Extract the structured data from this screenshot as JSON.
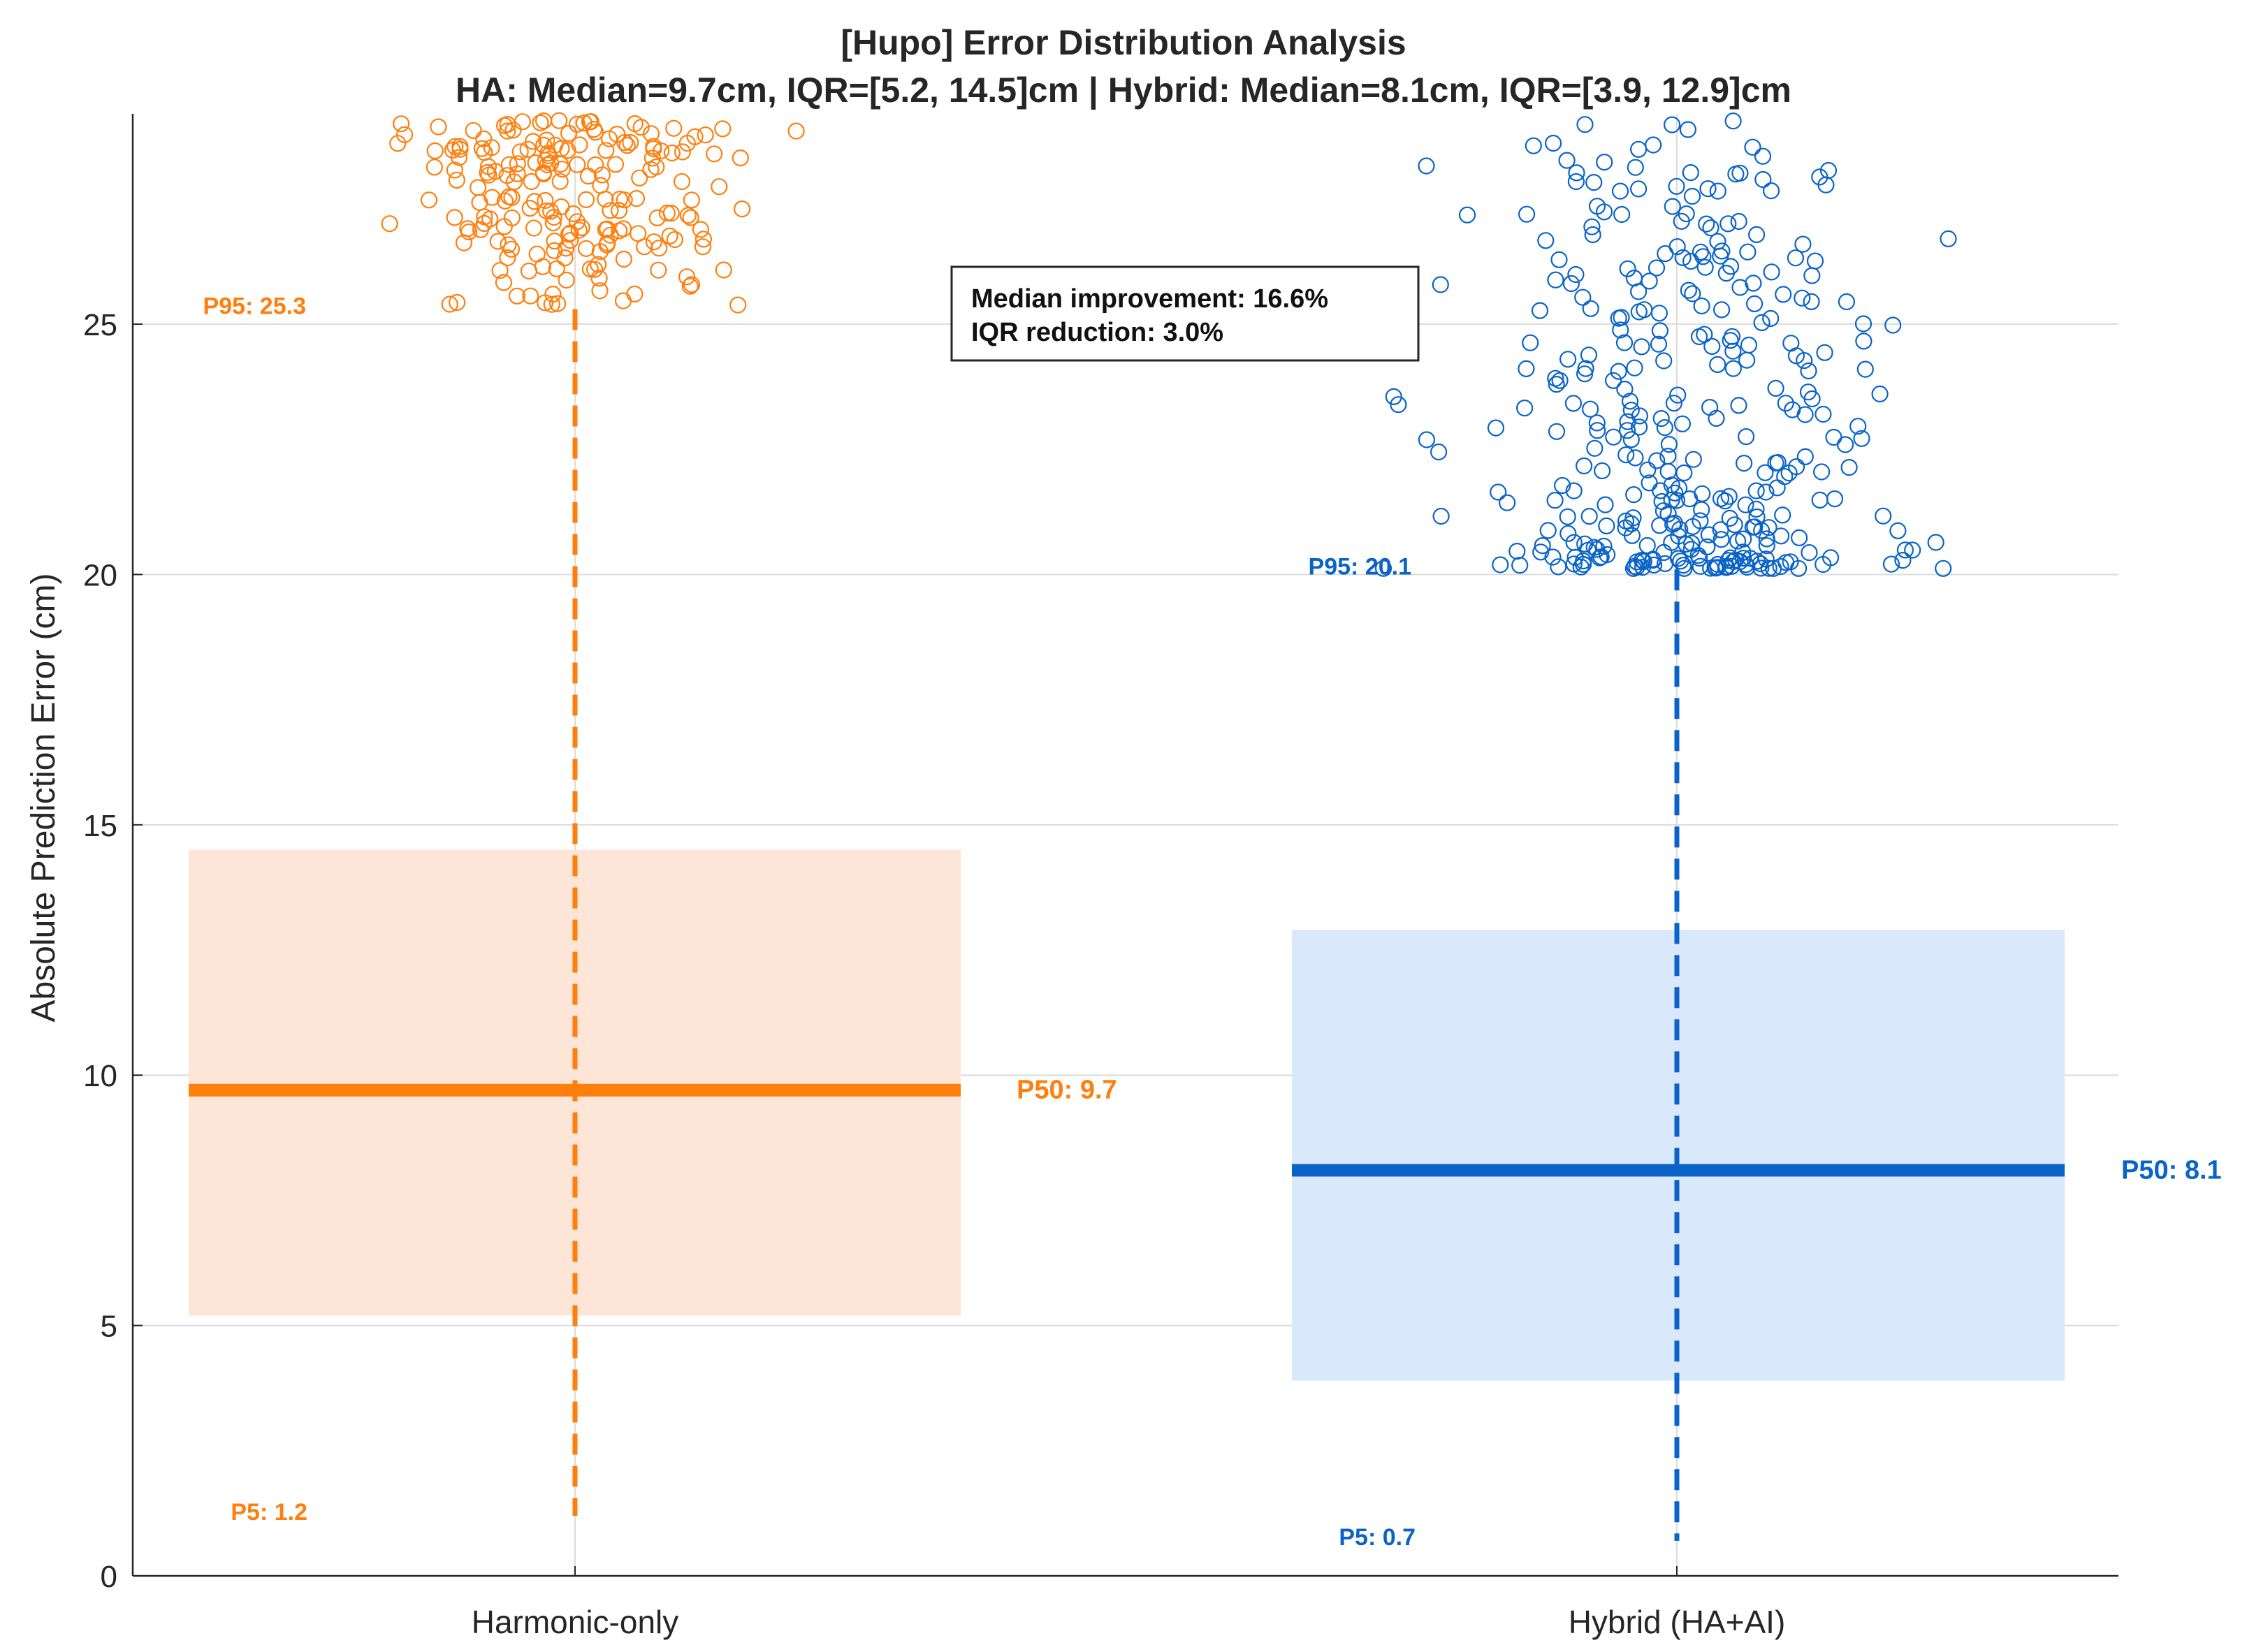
{
  "chart_data": {
    "type": "box",
    "title": "[Hupo] Error Distribution Analysis",
    "subtitle": "HA: Median=9.7cm, IQR=[5.2, 14.5]cm | Hybrid: Median=8.1cm, IQR=[3.9, 12.9]cm",
    "xlabel": "",
    "ylabel": "Absolute Prediction Error (cm)",
    "ylim": [
      0,
      29.2
    ],
    "yticks": [
      "0",
      "5",
      "10",
      "15",
      "20",
      "25"
    ],
    "grid": true,
    "categories": [
      "Harmonic-only",
      "Hybrid (HA+AI)"
    ],
    "series": [
      {
        "name": "Harmonic-only",
        "color": "#FF7F0E",
        "fill": "#FDE6D7",
        "p5": 1.2,
        "q1": 5.2,
        "median": 9.7,
        "q3": 14.5,
        "p95": 25.3,
        "p95_label": "P95: 25.3",
        "p50_label": "P50: 9.7",
        "p5_label": "P5: 1.2",
        "outlier_count": 200,
        "outlier_range": [
          25.3,
          29.2
        ]
      },
      {
        "name": "Hybrid (HA+AI)",
        "color": "#0A64C8",
        "fill": "#DAE8FC",
        "p5": 0.7,
        "q1": 3.9,
        "median": 8.1,
        "q3": 12.9,
        "p95": 20.1,
        "p95_label": "P95: 20.1",
        "p50_label": "P50: 8.1",
        "p5_label": "P5: 0.7",
        "outlier_count": 350,
        "outlier_range": [
          20.1,
          29.2
        ]
      }
    ],
    "annotation": {
      "line1": "Median improvement: 16.6%",
      "line2": "IQR reduction: 3.0%"
    }
  }
}
